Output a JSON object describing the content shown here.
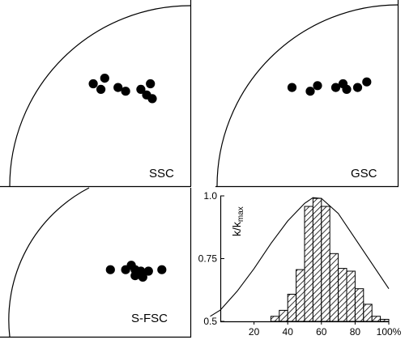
{
  "chart_data": [
    {
      "type": "scatter",
      "label": "SSC",
      "points": [
        [
          0.49,
          0.55
        ],
        [
          0.55,
          0.58
        ],
        [
          0.53,
          0.52
        ],
        [
          0.62,
          0.53
        ],
        [
          0.66,
          0.51
        ],
        [
          0.74,
          0.52
        ],
        [
          0.77,
          0.49
        ],
        [
          0.79,
          0.55
        ],
        [
          0.8,
          0.47
        ]
      ]
    },
    {
      "type": "scatter",
      "label": "GSC",
      "points": [
        [
          0.42,
          0.53
        ],
        [
          0.52,
          0.51
        ],
        [
          0.56,
          0.54
        ],
        [
          0.66,
          0.53
        ],
        [
          0.7,
          0.55
        ],
        [
          0.72,
          0.52
        ],
        [
          0.78,
          0.53
        ],
        [
          0.83,
          0.56
        ]
      ]
    },
    {
      "type": "scatter",
      "label": "S-FSC",
      "points": [
        [
          0.58,
          0.45
        ],
        [
          0.66,
          0.45
        ],
        [
          0.69,
          0.48
        ],
        [
          0.71,
          0.45
        ],
        [
          0.71,
          0.41
        ],
        [
          0.74,
          0.44
        ],
        [
          0.75,
          0.4
        ],
        [
          0.78,
          0.44
        ],
        [
          0.85,
          0.45
        ]
      ]
    },
    {
      "type": "bar",
      "ylabel": "k/k",
      "ylabel_sub": "max",
      "yticks": [
        "1.0",
        "0.75",
        "0.5"
      ],
      "xticks": [
        "20",
        "40",
        "60",
        "80",
        "100%"
      ],
      "ylim": [
        0.5,
        1.0
      ],
      "xlim": [
        0,
        100
      ],
      "bins": [
        {
          "x0": 30,
          "x1": 35,
          "value": 0.52
        },
        {
          "x0": 35,
          "x1": 40,
          "value": 0.544
        },
        {
          "x0": 40,
          "x1": 45,
          "value": 0.608
        },
        {
          "x0": 45,
          "x1": 50,
          "value": 0.706
        },
        {
          "x0": 50,
          "x1": 55,
          "value": 0.958
        },
        {
          "x0": 55,
          "x1": 60,
          "value": 0.99
        },
        {
          "x0": 60,
          "x1": 65,
          "value": 0.958
        },
        {
          "x0": 65,
          "x1": 70,
          "value": 0.77
        },
        {
          "x0": 70,
          "x1": 75,
          "value": 0.711
        },
        {
          "x0": 75,
          "x1": 80,
          "value": 0.7
        },
        {
          "x0": 80,
          "x1": 85,
          "value": 0.63
        },
        {
          "x0": 85,
          "x1": 90,
          "value": 0.568
        },
        {
          "x0": 90,
          "x1": 95,
          "value": 0.52
        },
        {
          "x0": 95,
          "x1": 100,
          "value": 0.508
        }
      ],
      "curve": [
        [
          -6,
          0.52
        ],
        [
          0,
          0.545
        ],
        [
          10,
          0.62
        ],
        [
          20,
          0.71
        ],
        [
          30,
          0.81
        ],
        [
          40,
          0.9
        ],
        [
          50,
          0.97
        ],
        [
          55,
          0.993
        ],
        [
          60,
          0.99
        ],
        [
          70,
          0.93
        ],
        [
          80,
          0.83
        ],
        [
          90,
          0.73
        ],
        [
          100,
          0.63
        ]
      ]
    }
  ]
}
